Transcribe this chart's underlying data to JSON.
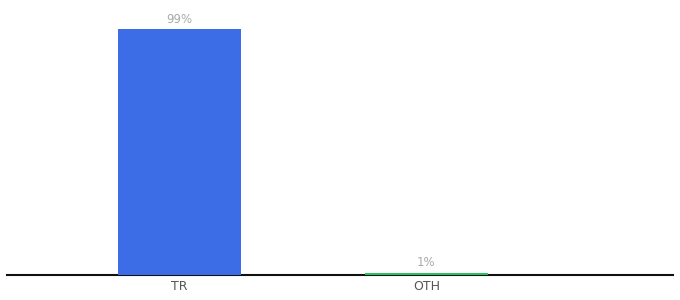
{
  "categories": [
    "TR",
    "OTH"
  ],
  "values": [
    99,
    1
  ],
  "bar_colors": [
    "#3d6ce7",
    "#22c55e"
  ],
  "labels": [
    "99%",
    "1%"
  ],
  "background_color": "#ffffff",
  "ylim": [
    0,
    108
  ],
  "bar_width": 0.5,
  "label_fontsize": 8.5,
  "tick_fontsize": 9,
  "label_color": "#aaaaaa",
  "axis_line_color": "#111111",
  "x_positions": [
    1,
    2
  ],
  "xlim": [
    0.3,
    3.0
  ]
}
